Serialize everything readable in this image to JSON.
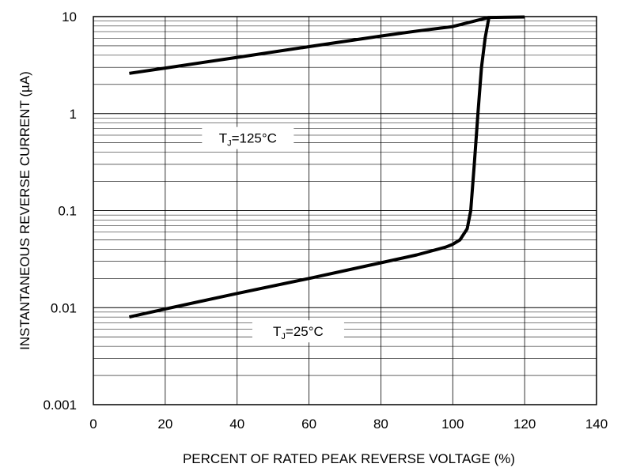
{
  "chart_data": {
    "type": "line",
    "title": "",
    "xlabel": "PERCENT OF RATED PEAK REVERSE VOLTAGE (%)",
    "ylabel": "INSTANTANEOUS REVERSE CURRENT (µA)",
    "xlim": [
      0,
      140
    ],
    "ylim": [
      0.001,
      10
    ],
    "yscale": "log",
    "grid": true,
    "legend": "none",
    "x_ticks": [
      "0",
      "20",
      "40",
      "60",
      "80",
      "100",
      "120",
      "140"
    ],
    "y_ticks": [
      "0.001",
      "0.01",
      "0.1",
      "1",
      "10"
    ],
    "series": [
      {
        "x": [
          10,
          20,
          40,
          60,
          80,
          90,
          100,
          105,
          110,
          120
        ],
        "y": [
          2.6,
          2.95,
          3.8,
          4.9,
          6.3,
          7.1,
          7.9,
          8.8,
          9.8,
          9.9
        ]
      },
      {
        "x": [
          10,
          20,
          40,
          60,
          80,
          90,
          98,
          100,
          102,
          104,
          105,
          106,
          107,
          108,
          109,
          110
        ],
        "y": [
          0.008,
          0.0097,
          0.014,
          0.02,
          0.029,
          0.035,
          0.042,
          0.045,
          0.05,
          0.065,
          0.1,
          0.3,
          1.0,
          3.0,
          6.0,
          9.5
        ]
      }
    ],
    "annotations": [
      {
        "main": "T",
        "sub": "J",
        "rest": "=125°C",
        "x": 43,
        "y": 0.56
      },
      {
        "main": "T",
        "sub": "J",
        "rest": "=25°C",
        "x": 57,
        "y": 0.0057
      }
    ]
  }
}
